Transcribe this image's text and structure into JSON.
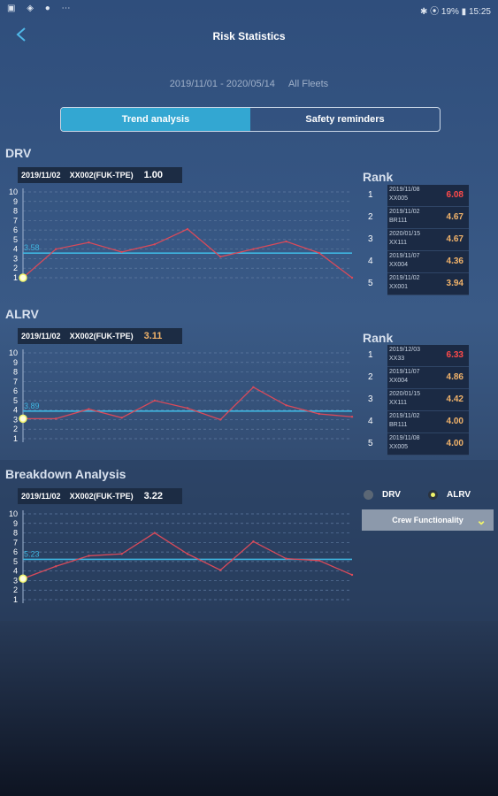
{
  "status_bar": {
    "left_icons": "▣ ◈ ● ⋯",
    "right_text": "✱ ⦿ 19% ▮ 15:25"
  },
  "header": {
    "title": "Risk Statistics"
  },
  "filter": {
    "date_range": "2019/11/01 - 2020/05/14",
    "fleet": "All Fleets"
  },
  "tabs": [
    {
      "label": "Trend analysis",
      "active": true
    },
    {
      "label": "Safety reminders",
      "active": false
    }
  ],
  "colors": {
    "accent": "#33a7d2",
    "line": "#d94a5a",
    "avg": "#3fb5e0",
    "red": "#ff4a4a",
    "orange": "#f2b36a"
  },
  "charts": {
    "drv": {
      "title": "DRV",
      "sel_date": "2019/11/02",
      "sel_flight": "XX002(FUK-TPE)",
      "sel_value": "1.00",
      "sel_value_color": "#ffffff",
      "avg_label": "3.58",
      "avg": 3.58,
      "y_ticks": [
        "10",
        "9",
        "8",
        "7",
        "6",
        "5",
        "4",
        "3",
        "2",
        "1"
      ],
      "chart_data": {
        "type": "line",
        "ylim": [
          1,
          10
        ],
        "values": [
          1.0,
          4.0,
          4.7,
          3.7,
          4.5,
          6.1,
          3.2,
          4.0,
          4.8,
          3.6,
          1.0
        ],
        "avg": 3.58
      }
    },
    "alrv": {
      "title": "ALRV",
      "sel_date": "2019/11/02",
      "sel_flight": "XX002(FUK-TPE)",
      "sel_value": "3.11",
      "sel_value_color": "#f2b36a",
      "avg_label": "3.89",
      "avg": 3.89,
      "y_ticks": [
        "10",
        "9",
        "8",
        "7",
        "6",
        "5",
        "4",
        "3",
        "2",
        "1"
      ],
      "chart_data": {
        "type": "line",
        "ylim": [
          1,
          10
        ],
        "values": [
          3.1,
          3.1,
          4.1,
          3.2,
          5.0,
          4.2,
          3.0,
          6.4,
          4.5,
          3.6,
          3.3
        ],
        "avg": 3.89
      }
    },
    "breakdown": {
      "title": "Breakdown Analysis",
      "sel_date": "2019/11/02",
      "sel_flight": "XX002(FUK-TPE)",
      "sel_value": "3.22",
      "sel_value_color": "#ffffff",
      "avg_label": "5.23",
      "avg": 5.23,
      "y_ticks": [
        "10",
        "9",
        "8",
        "7",
        "6",
        "5",
        "4",
        "3",
        "2",
        "1"
      ],
      "chart_data": {
        "type": "line",
        "ylim": [
          1,
          10
        ],
        "values": [
          3.2,
          4.5,
          5.6,
          5.8,
          8.0,
          5.8,
          4.1,
          7.1,
          5.3,
          5.1,
          3.6
        ],
        "avg": 5.23
      }
    }
  },
  "rank_drv": {
    "title": "Rank",
    "rows": [
      {
        "num": "1",
        "date": "2019/11/08",
        "flight": "XX005",
        "value": "6.08",
        "color": "#ff4a4a"
      },
      {
        "num": "2",
        "date": "2019/11/02",
        "flight": "BR111",
        "value": "4.67",
        "color": "#f2b36a"
      },
      {
        "num": "3",
        "date": "2020/01/15",
        "flight": "XX111",
        "value": "4.67",
        "color": "#f2b36a"
      },
      {
        "num": "4",
        "date": "2019/11/07",
        "flight": "XX004",
        "value": "4.36",
        "color": "#f2b36a"
      },
      {
        "num": "5",
        "date": "2019/11/02",
        "flight": "XX001",
        "value": "3.94",
        "color": "#f2b36a"
      }
    ]
  },
  "rank_alrv": {
    "title": "Rank",
    "rows": [
      {
        "num": "1",
        "date": "2019/12/03",
        "flight": "XX33",
        "value": "6.33",
        "color": "#ff4a4a"
      },
      {
        "num": "2",
        "date": "2019/11/07",
        "flight": "XX004",
        "value": "4.86",
        "color": "#f2b36a"
      },
      {
        "num": "3",
        "date": "2020/01/15",
        "flight": "XX111",
        "value": "4.42",
        "color": "#f2b36a"
      },
      {
        "num": "4",
        "date": "2019/11/02",
        "flight": "BR111",
        "value": "4.00",
        "color": "#f2b36a"
      },
      {
        "num": "5",
        "date": "2019/11/08",
        "flight": "XX005",
        "value": "4.00",
        "color": "#f2b36a"
      }
    ]
  },
  "breakdown_controls": {
    "radio_drv": "DRV",
    "radio_alrv": "ALRV",
    "selected": "ALRV",
    "dropdown_label": "Crew Functionality"
  }
}
